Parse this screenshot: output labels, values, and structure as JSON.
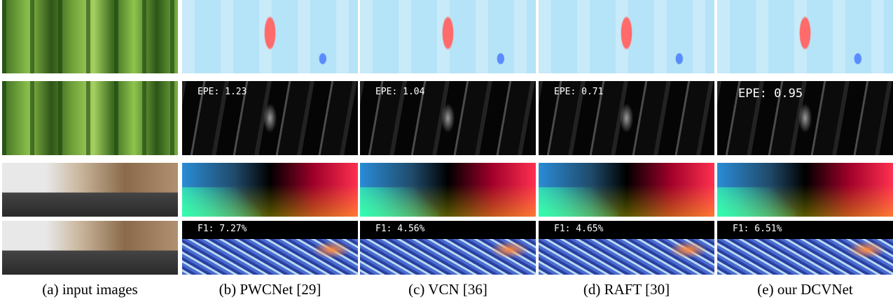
{
  "columns": [
    {
      "caption": "(a) input images"
    },
    {
      "caption": "(b) PWCNet [29]",
      "epe": "EPE: 1.23",
      "f1": "F1: 7.27%"
    },
    {
      "caption": "(c) VCN [36]",
      "epe": "EPE: 1.04",
      "f1": "F1: 4.56%"
    },
    {
      "caption": "(d) RAFT [30]",
      "epe": "EPE: 0.71",
      "f1": "F1: 4.65%"
    },
    {
      "caption": "(e) our DCVNet",
      "epe": "EPE: 0.95",
      "f1": "F1: 6.51%"
    }
  ]
}
